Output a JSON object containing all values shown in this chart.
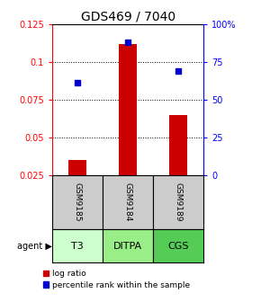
{
  "title": "GDS469 / 7040",
  "samples": [
    "GSM9185",
    "GSM9184",
    "GSM9189"
  ],
  "agents": [
    "T3",
    "DITPA",
    "CGS"
  ],
  "bar_values": [
    0.035,
    0.112,
    0.065
  ],
  "dot_values": [
    0.086,
    0.113,
    0.094
  ],
  "ylim_left": [
    0.025,
    0.125
  ],
  "ylim_right": [
    0,
    100
  ],
  "yticks_left": [
    0.025,
    0.05,
    0.075,
    0.1,
    0.125
  ],
  "yticks_right": [
    0,
    25,
    50,
    75,
    100
  ],
  "ytick_labels_left": [
    "0.025",
    "0.05",
    "0.075",
    "0.1",
    "0.125"
  ],
  "ytick_labels_right": [
    "0",
    "25",
    "50",
    "75",
    "100%"
  ],
  "bar_color": "#cc0000",
  "dot_color": "#0000cc",
  "sample_bg_color": "#cccccc",
  "agent_colors": [
    "#ccffcc",
    "#99ee88",
    "#55cc55"
  ],
  "legend_bar_label": "log ratio",
  "legend_dot_label": "percentile rank within the sample",
  "agent_label": "agent",
  "background_color": "#ffffff",
  "title_fontsize": 10,
  "tick_fontsize": 7,
  "sample_fontsize": 6.5,
  "agent_fontsize": 8
}
